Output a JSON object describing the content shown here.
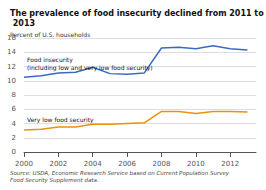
{
  "chart_data": {
    "type": "line",
    "title": "The prevalence of food insecurity declined from 2011 to 2013",
    "y_label": "Percent of U.S. households",
    "source": "Source: USDA, Economic Research Service based on Current Population Survey\nFood Security Supplement data.",
    "x": [
      2000,
      2001,
      2002,
      2003,
      2004,
      2005,
      2006,
      2007,
      2008,
      2009,
      2010,
      2011,
      2012,
      2013
    ],
    "series": [
      {
        "name": "Food insecurity\n(including low and very low food security)",
        "color": "#3a6abf",
        "values": [
          10.5,
          10.7,
          11.1,
          11.2,
          11.9,
          11.0,
          10.9,
          11.1,
          14.6,
          14.7,
          14.5,
          14.9,
          14.5,
          14.3
        ]
      },
      {
        "name": "Very low food security",
        "color": "#e8930a",
        "values": [
          3.1,
          3.2,
          3.5,
          3.5,
          3.9,
          3.9,
          4.0,
          4.1,
          5.7,
          5.7,
          5.4,
          5.7,
          5.7,
          5.6
        ]
      }
    ],
    "xlim": [
      2000,
      2013.5
    ],
    "ylim": [
      0,
      16
    ],
    "xticks": [
      2000,
      2002,
      2004,
      2006,
      2008,
      2010,
      2012
    ],
    "yticks": [
      0,
      2,
      4,
      6,
      8,
      10,
      12,
      14,
      16
    ],
    "grid": true
  }
}
